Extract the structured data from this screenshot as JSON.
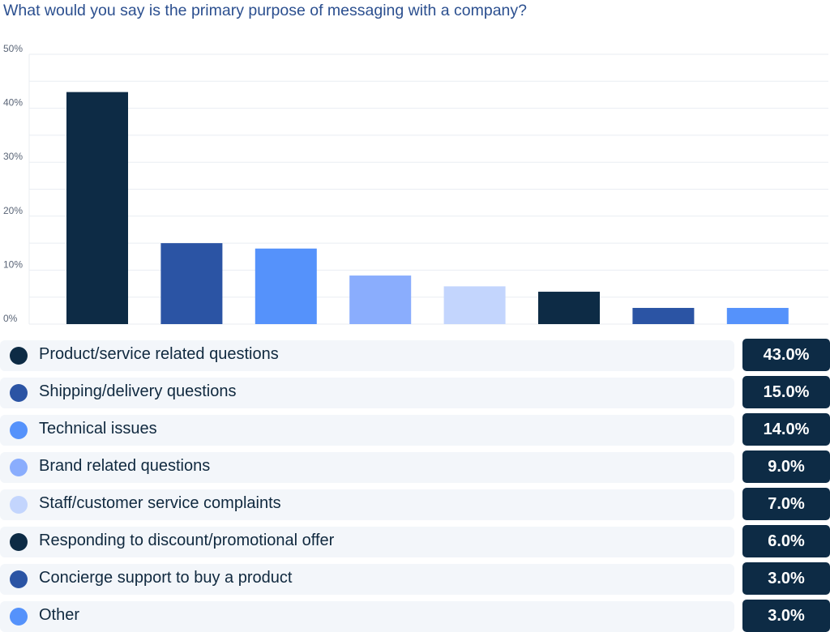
{
  "title": "What would you say is the primary purpose of messaging with a company?",
  "colors": {
    "navy": "#0d2b45",
    "royal": "#2b54a4",
    "blue": "#5592fb",
    "light_blue": "#8aadfd",
    "pale_blue": "#c3d5fd",
    "row_background": "#f3f6fa",
    "badge_background": "#0d2b45"
  },
  "chart_data": {
    "type": "bar",
    "title": "What would you say is the primary purpose of messaging with a company?",
    "xlabel": "",
    "ylabel": "",
    "ylim": [
      0,
      50
    ],
    "yticks": [
      "0%",
      "10%",
      "20%",
      "30%",
      "40%",
      "50%"
    ],
    "grid": true,
    "legend": "below",
    "categories": [
      "Product/service related questions",
      "Shipping/delivery questions",
      "Technical issues",
      "Brand related questions",
      "Staff/customer service complaints",
      "Responding to discount/promotional offer",
      "Concierge support to buy a product",
      "Other"
    ],
    "values": [
      43,
      15,
      14,
      9,
      7,
      6,
      3,
      3
    ],
    "bar_colors": [
      "#0d2b45",
      "#2b54a4",
      "#5592fb",
      "#8aadfd",
      "#c3d5fd",
      "#0d2b45",
      "#2b54a4",
      "#5592fb"
    ]
  },
  "legend": [
    {
      "label": "Product/service related questions",
      "value": "43.0%",
      "color": "#0d2b45"
    },
    {
      "label": "Shipping/delivery questions",
      "value": "15.0%",
      "color": "#2b54a4"
    },
    {
      "label": "Technical issues",
      "value": "14.0%",
      "color": "#5592fb"
    },
    {
      "label": "Brand related questions",
      "value": "9.0%",
      "color": "#8aadfd"
    },
    {
      "label": "Staff/customer service complaints",
      "value": "7.0%",
      "color": "#c3d5fd"
    },
    {
      "label": "Responding to discount/promotional offer",
      "value": "6.0%",
      "color": "#0d2b45"
    },
    {
      "label": "Concierge support to buy a product",
      "value": "3.0%",
      "color": "#2b54a4"
    },
    {
      "label": "Other",
      "value": "3.0%",
      "color": "#5592fb"
    }
  ]
}
